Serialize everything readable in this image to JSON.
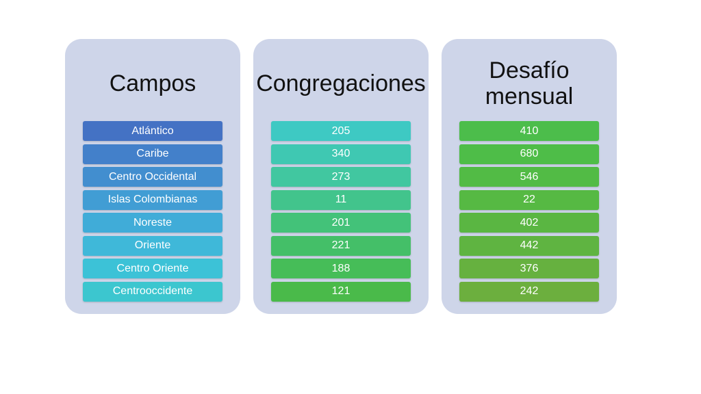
{
  "columns": [
    {
      "title": "Campos",
      "items": [
        "Atlántico",
        "Caribe",
        "Centro Occidental",
        "Islas Colombianas",
        "Noreste",
        "Oriente",
        "Centro Oriente",
        "Centrooccidente"
      ],
      "colors": [
        "#4472c4",
        "#4380ca",
        "#428ecf",
        "#419dd4",
        "#40acd8",
        "#3fb8d9",
        "#3cc2d7",
        "#3cc6cf"
      ]
    },
    {
      "title": "Congregaciones",
      "items": [
        "205",
        "340",
        "273",
        "11",
        "201",
        "221",
        "188",
        "121"
      ],
      "colors": [
        "#3ec9c3",
        "#3fc8b2",
        "#41c7a0",
        "#42c48c",
        "#43c279",
        "#44bf68",
        "#46bd58",
        "#4aba4a"
      ]
    },
    {
      "title": "Desafío mensual",
      "items": [
        "410",
        "680",
        "546",
        "22",
        "402",
        "442",
        "376",
        "242"
      ],
      "colors": [
        "#4cbd4b",
        "#4ebd48",
        "#52bb45",
        "#56b943",
        "#5ab642",
        "#5fb441",
        "#66b13f",
        "#6caf3e"
      ]
    }
  ]
}
